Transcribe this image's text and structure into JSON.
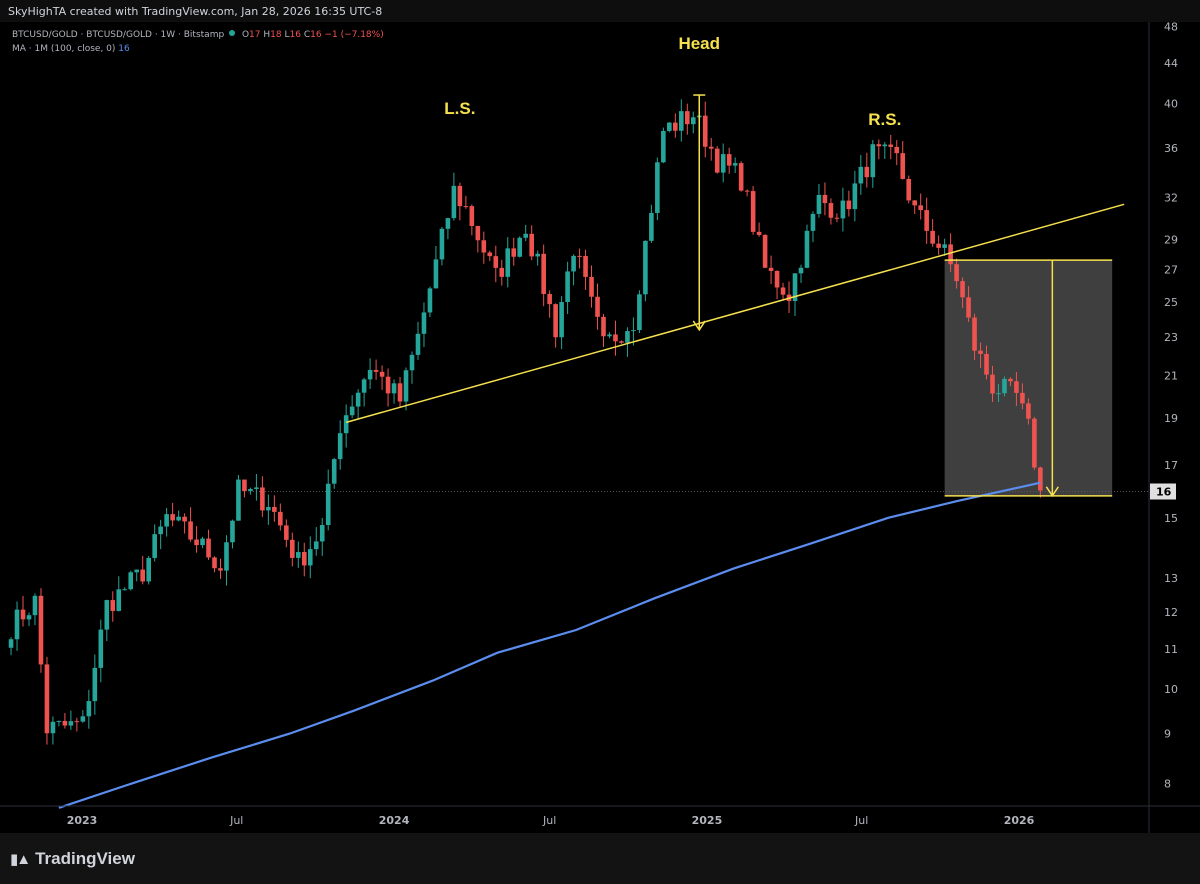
{
  "header": {
    "credit": "SkyHighTA created with TradingView.com, Jan 28, 2026 16:35 UTC-8",
    "symbol": "BTCUSD/GOLD · BTCUSD/GOLD · 1W · Bitstamp",
    "o_label": "O",
    "o_value": "17",
    "h_label": "H",
    "h_value": "18",
    "l_label": "L",
    "l_value": "16",
    "c_label": "C",
    "c_value": "16",
    "change": "−1 (−7.18%)",
    "ma_label": "MA · 1M (100, close, 0)",
    "ma_value": "16"
  },
  "footer": {
    "brand": "TradingView",
    "logo": "tradingview-logo-icon"
  },
  "colors": {
    "up": "#26a69a",
    "down": "#ef5350",
    "ma": "#5b8dee",
    "annotation": "#f5e04e",
    "price_tag": "#e0e0e0",
    "projection_box": "#4a4a4a"
  },
  "chart_data": {
    "type": "candlestick",
    "scale": "log",
    "timeframe": "1W",
    "ylim": [
      7.6,
      48.5
    ],
    "y_ticks": [
      48,
      44,
      40,
      36,
      32,
      29,
      27,
      25,
      23,
      21,
      19,
      17,
      15,
      13,
      12,
      11,
      10,
      9,
      8
    ],
    "x_ticks": [
      {
        "label": "2023",
        "date": "2023-01-01"
      },
      {
        "label": "Jul",
        "date": "2023-07-01"
      },
      {
        "label": "2024",
        "date": "2024-01-01"
      },
      {
        "label": "Jul",
        "date": "2024-07-01"
      },
      {
        "label": "2025",
        "date": "2025-01-01"
      },
      {
        "label": "Jul",
        "date": "2025-07-01"
      },
      {
        "label": "2026",
        "date": "2026-01-01"
      }
    ],
    "last_price": 16,
    "anchors": [
      [
        "2022-10-10",
        11.6
      ],
      [
        "2022-11-07",
        12.3
      ],
      [
        "2022-11-21",
        9.1
      ],
      [
        "2023-01-02",
        9.2
      ],
      [
        "2023-01-30",
        12.2
      ],
      [
        "2023-03-13",
        13.2
      ],
      [
        "2023-04-10",
        15.0
      ],
      [
        "2023-05-15",
        14.2
      ],
      [
        "2023-06-12",
        13.4
      ],
      [
        "2023-07-03",
        16.0
      ],
      [
        "2023-08-07",
        15.6
      ],
      [
        "2023-09-11",
        13.5
      ],
      [
        "2023-10-09",
        14.6
      ],
      [
        "2023-10-30",
        18.7
      ],
      [
        "2023-12-04",
        21.5
      ],
      [
        "2024-01-08",
        19.8
      ],
      [
        "2024-01-29",
        23.0
      ],
      [
        "2024-03-11",
        32.5
      ],
      [
        "2024-03-25",
        31.2
      ],
      [
        "2024-04-29",
        26.5
      ],
      [
        "2024-06-03",
        30.0
      ],
      [
        "2024-07-08",
        23.5
      ],
      [
        "2024-07-29",
        28.5
      ],
      [
        "2024-09-02",
        22.5
      ],
      [
        "2024-10-07",
        24.0
      ],
      [
        "2024-11-11",
        37.5
      ],
      [
        "2024-12-16",
        39.0
      ],
      [
        "2025-01-13",
        35.0
      ],
      [
        "2025-02-10",
        33.5
      ],
      [
        "2025-03-10",
        27.0
      ],
      [
        "2025-04-07",
        25.5
      ],
      [
        "2025-05-12",
        31.8
      ],
      [
        "2025-06-09",
        31.0
      ],
      [
        "2025-07-14",
        35.5
      ],
      [
        "2025-08-11",
        35.0
      ],
      [
        "2025-09-01",
        31.0
      ],
      [
        "2025-10-06",
        28.0
      ],
      [
        "2025-10-20",
        26.5
      ],
      [
        "2025-11-10",
        22.5
      ],
      [
        "2025-12-01",
        20.5
      ],
      [
        "2025-12-29",
        20.0
      ],
      [
        "2026-01-12",
        18.5
      ],
      [
        "2026-01-26",
        16.0
      ]
    ],
    "ma_series": {
      "name": "MA (100, close, 0)",
      "points": [
        [
          "2022-12-05",
          7.55
        ],
        [
          "2023-03-01",
          8.0
        ],
        [
          "2023-06-01",
          8.5
        ],
        [
          "2023-09-01",
          9.0
        ],
        [
          "2023-11-15",
          9.5
        ],
        [
          "2024-02-15",
          10.2
        ],
        [
          "2024-05-01",
          10.9
        ],
        [
          "2024-08-01",
          11.5
        ],
        [
          "2024-11-01",
          12.4
        ],
        [
          "2025-02-01",
          13.3
        ],
        [
          "2025-05-01",
          14.1
        ],
        [
          "2025-08-01",
          15.0
        ],
        [
          "2025-10-20",
          15.6
        ],
        [
          "2026-01-26",
          16.3
        ]
      ]
    },
    "annotations": [
      {
        "text": "L.S.",
        "date": "2024-03-18",
        "price": 39
      },
      {
        "text": "Head",
        "date": "2024-12-23",
        "price": 45.5
      },
      {
        "text": "R.S.",
        "date": "2025-07-28",
        "price": 38
      }
    ],
    "neckline": {
      "from": [
        "2023-11-06",
        18.8
      ],
      "to": [
        "2026-05-04",
        31.5
      ]
    },
    "head_measure": {
      "date": "2024-12-23",
      "from": 40.8,
      "to": 23.4
    },
    "target_box": {
      "from_date": "2025-10-06",
      "to_date": "2026-04-20",
      "top": 27.6,
      "bottom": 15.8
    },
    "target_arrow": {
      "date": "2026-02-09",
      "from": 27.6,
      "to": 15.8
    }
  }
}
